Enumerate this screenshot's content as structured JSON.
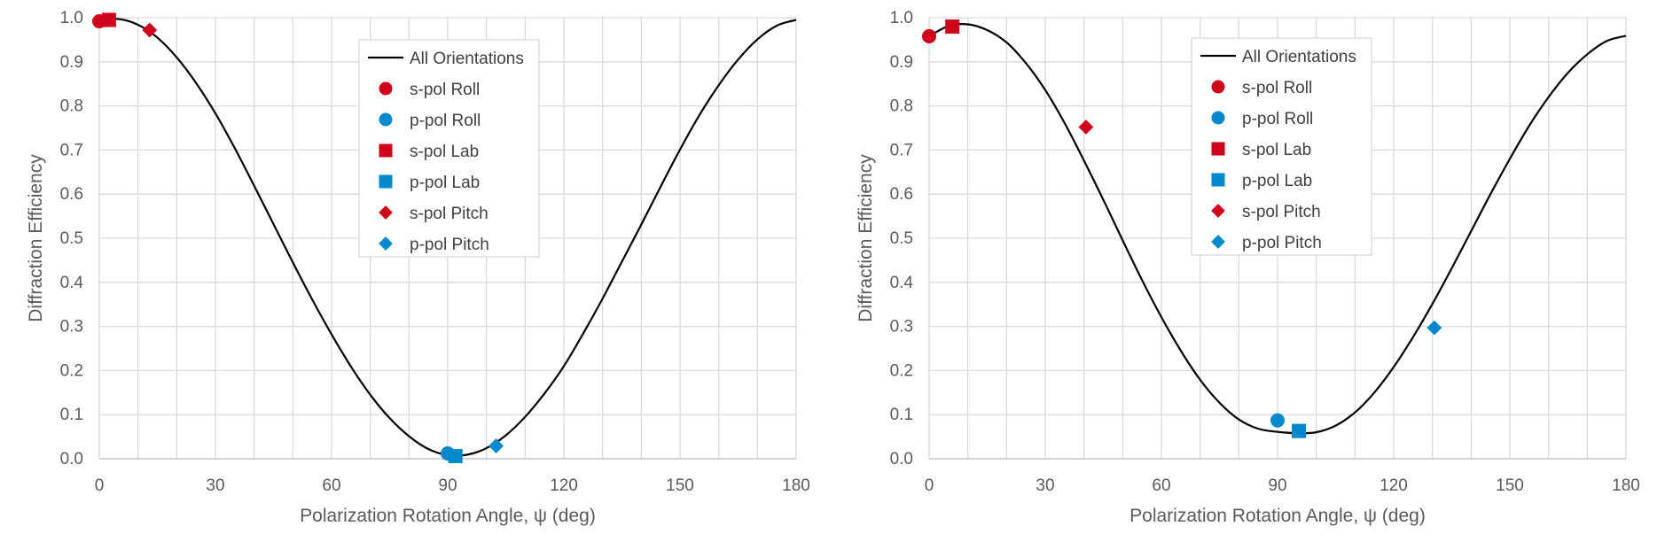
{
  "chart_data": [
    {
      "type": "scatter",
      "title": "",
      "xlabel": "Polarization Rotation Angle, ψ (deg)",
      "ylabel": "Diffraction Efficiency",
      "xlim": [
        0,
        180
      ],
      "ylim": [
        0,
        1
      ],
      "xticks": [
        "0",
        "30",
        "60",
        "90",
        "120",
        "150",
        "180"
      ],
      "yticks": [
        "0.0",
        "0.1",
        "0.2",
        "0.3",
        "0.4",
        "0.5",
        "0.6",
        "0.7",
        "0.8",
        "0.9",
        "1.0"
      ],
      "grid": true,
      "legend_position": "top-center",
      "curve": {
        "name": "All Orientations",
        "color": "#000000",
        "x": [
          0,
          5,
          10,
          15,
          20,
          25,
          30,
          35,
          40,
          45,
          50,
          55,
          60,
          65,
          70,
          75,
          80,
          85,
          90,
          95,
          100,
          105,
          110,
          115,
          120,
          125,
          130,
          135,
          140,
          145,
          150,
          155,
          160,
          165,
          170,
          175,
          180
        ],
        "y": [
          0.993,
          0.997,
          0.984,
          0.955,
          0.91,
          0.852,
          0.783,
          0.704,
          0.619,
          0.532,
          0.445,
          0.361,
          0.282,
          0.209,
          0.145,
          0.092,
          0.051,
          0.022,
          0.008,
          0.009,
          0.024,
          0.053,
          0.095,
          0.148,
          0.21,
          0.284,
          0.363,
          0.447,
          0.531,
          0.617,
          0.701,
          0.779,
          0.847,
          0.905,
          0.951,
          0.982,
          0.995
        ]
      },
      "series": [
        {
          "name": "s-pol Roll",
          "marker": "circle",
          "color": "#d0021b",
          "x": [
            0
          ],
          "y": [
            0.992
          ]
        },
        {
          "name": "p-pol Roll",
          "marker": "circle",
          "color": "#0088cc",
          "x": [
            90
          ],
          "y": [
            0.012
          ]
        },
        {
          "name": "s-pol Lab",
          "marker": "square",
          "color": "#d0021b",
          "x": [
            2.5
          ],
          "y": [
            0.995
          ]
        },
        {
          "name": "p-pol Lab",
          "marker": "square",
          "color": "#0088cc",
          "x": [
            92
          ],
          "y": [
            0.006
          ]
        },
        {
          "name": "s-pol Pitch",
          "marker": "diamond",
          "color": "#d0021b",
          "x": [
            13
          ],
          "y": [
            0.972
          ]
        },
        {
          "name": "p-pol Pitch",
          "marker": "diamond",
          "color": "#0088cc",
          "x": [
            102.5
          ],
          "y": [
            0.029
          ]
        }
      ]
    },
    {
      "type": "scatter",
      "title": "",
      "xlabel": "Polarization Rotation Angle, ψ (deg)",
      "ylabel": "Diffraction Efficiency",
      "xlim": [
        0,
        180
      ],
      "ylim": [
        0,
        1
      ],
      "xticks": [
        "0",
        "30",
        "60",
        "90",
        "120",
        "150",
        "180"
      ],
      "yticks": [
        "0.0",
        "0.1",
        "0.2",
        "0.3",
        "0.4",
        "0.5",
        "0.6",
        "0.7",
        "0.8",
        "0.9",
        "1.0"
      ],
      "grid": true,
      "legend_position": "top-center",
      "curve": {
        "name": "All Orientations",
        "color": "#000000",
        "x": [
          0,
          5,
          10,
          15,
          20,
          25,
          30,
          35,
          40,
          45,
          50,
          55,
          60,
          65,
          70,
          75,
          80,
          85,
          90,
          95,
          100,
          105,
          110,
          115,
          120,
          125,
          130,
          135,
          140,
          145,
          150,
          155,
          160,
          165,
          170,
          175,
          180
        ],
        "y": [
          0.958,
          0.981,
          0.985,
          0.972,
          0.944,
          0.897,
          0.836,
          0.761,
          0.676,
          0.587,
          0.495,
          0.405,
          0.321,
          0.245,
          0.179,
          0.127,
          0.089,
          0.068,
          0.061,
          0.058,
          0.06,
          0.075,
          0.105,
          0.15,
          0.208,
          0.276,
          0.351,
          0.432,
          0.516,
          0.6,
          0.68,
          0.755,
          0.82,
          0.875,
          0.917,
          0.947,
          0.959
        ]
      },
      "series": [
        {
          "name": "s-pol Roll",
          "marker": "circle",
          "color": "#d0021b",
          "x": [
            0
          ],
          "y": [
            0.958
          ]
        },
        {
          "name": "p-pol Roll",
          "marker": "circle",
          "color": "#0088cc",
          "x": [
            90
          ],
          "y": [
            0.087
          ]
        },
        {
          "name": "s-pol Lab",
          "marker": "square",
          "color": "#d0021b",
          "x": [
            6
          ],
          "y": [
            0.98
          ]
        },
        {
          "name": "p-pol Lab",
          "marker": "square",
          "color": "#0088cc",
          "x": [
            95.5
          ],
          "y": [
            0.063
          ]
        },
        {
          "name": "s-pol Pitch",
          "marker": "diamond",
          "color": "#d0021b",
          "x": [
            40.5
          ],
          "y": [
            0.752
          ]
        },
        {
          "name": "p-pol Pitch",
          "marker": "diamond",
          "color": "#0088cc",
          "x": [
            130.5
          ],
          "y": [
            0.297
          ]
        }
      ]
    }
  ]
}
